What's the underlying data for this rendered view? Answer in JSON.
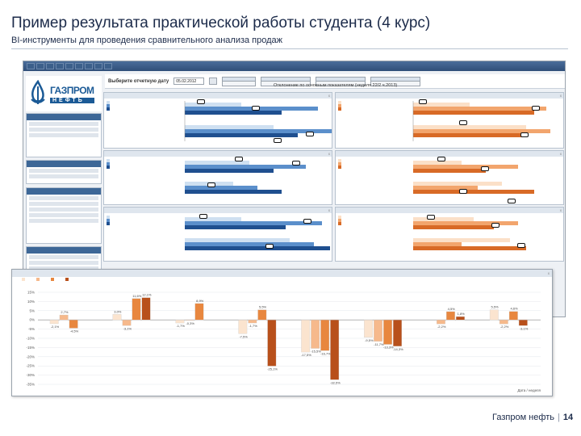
{
  "header": {
    "title": "Пример результата практической работы студента (4 курс)",
    "subtitle": "BI-инструменты для проведения сравнительного анализа продаж"
  },
  "app": {
    "menu": [
      "",
      "",
      "",
      "",
      "",
      "",
      "",
      "",
      ""
    ],
    "logo_name": "ГАЗПРОМ",
    "logo_sub": "НЕФТЬ",
    "filter_label": "Выберите отчетную дату",
    "filter_date": "05.02.2012",
    "report_title": "Отклонение по основным показателям (неделя 22/2 ч.2013)"
  },
  "chart_data": {
    "type": "bar",
    "ylim": [
      -35,
      15
    ],
    "yticks": [
      "15%",
      "10%",
      "5%",
      "0%",
      "-5%",
      "-10%",
      "-15%",
      "-20%",
      "-25%",
      "-30%",
      "-35%"
    ],
    "xlabel_right": "Дата / неделя",
    "series": [
      {
        "color": "#fbe4cf"
      },
      {
        "color": "#f6b98c"
      },
      {
        "color": "#e8873f"
      },
      {
        "color": "#b8501b"
      }
    ],
    "groups": [
      {
        "values": [
          -2.1,
          2.7,
          -4.5,
          0
        ]
      },
      {
        "values": [
          3.0,
          -3.1,
          11.6,
          12.1
        ]
      },
      {
        "values": [
          -1.7,
          -0.3,
          8.9,
          0
        ]
      },
      {
        "values": [
          -7.5,
          -1.7,
          5.5,
          -25.1
        ]
      },
      {
        "values": [
          -17.5,
          -15.5,
          -16.7,
          -32.5
        ]
      },
      {
        "values": [
          -9.5,
          -11.7,
          -13.3,
          -14.3
        ]
      },
      {
        "values": [
          0,
          -2.2,
          4.5,
          1.8
        ]
      },
      {
        "values": [
          5.5,
          -2.2,
          4.6,
          -3.1
        ]
      }
    ],
    "data_labels": [
      [
        "-2,1%",
        "2,7%",
        "-4,5%"
      ],
      [
        "3,0%",
        "-3,1%",
        "11,6%",
        "12,1%"
      ],
      [
        "-1,7%",
        "-0,3%",
        "8,9%"
      ],
      [
        "-7,5%",
        "-1,7%",
        "5,5%",
        "-25,1%"
      ],
      [
        "-17,5%",
        "-15,5%",
        "-16,7%",
        "-32,5%"
      ],
      [
        "-9,5%",
        "-11,7%",
        "-13,3%",
        "-14,3%"
      ],
      [
        "-2,2%",
        "4,5%",
        "1,8%"
      ],
      [
        "5,5%",
        "-2,2%",
        "4,6%",
        "-3,1%"
      ]
    ]
  },
  "footer": {
    "company": "Газпром нефть",
    "page": "14"
  }
}
